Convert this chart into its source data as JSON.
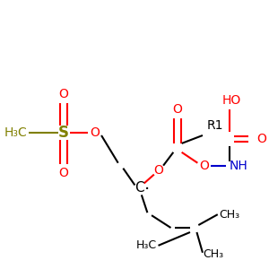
{
  "background_color": "#ffffff",
  "figsize": [
    3.0,
    3.0
  ],
  "dpi": 100,
  "xlim": [
    0,
    300
  ],
  "ylim": [
    0,
    300
  ]
}
